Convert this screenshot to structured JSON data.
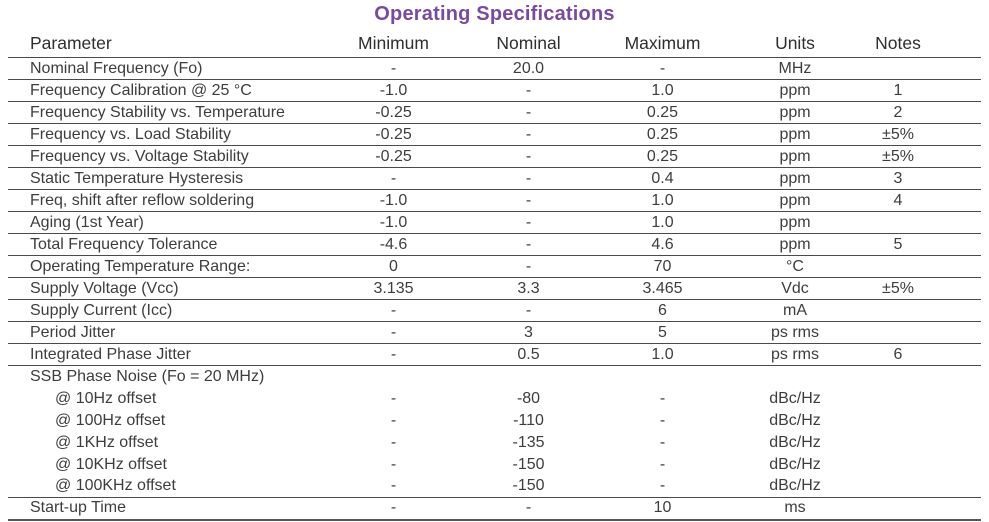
{
  "title": "Operating Specifications",
  "colors": {
    "title_accent": "#7a4a9d",
    "text": "#3d3d3d",
    "rule_line": "#4a4a4a"
  },
  "table": {
    "columns": [
      "Parameter",
      "Minimum",
      "Nominal",
      "Maximum",
      "Units",
      "Notes"
    ],
    "rows": [
      {
        "style": "normal",
        "cells": [
          "Nominal Frequency (Fo)",
          "-",
          "20.0",
          "-",
          "MHz",
          ""
        ]
      },
      {
        "style": "normal",
        "cells": [
          "Frequency Calibration @ 25 °C",
          "-1.0",
          "-",
          "1.0",
          "ppm",
          "1"
        ]
      },
      {
        "style": "normal",
        "cells": [
          "Frequency Stability vs. Temperature",
          "-0.25",
          "-",
          "0.25",
          "ppm",
          "2"
        ]
      },
      {
        "style": "normal",
        "cells": [
          "Frequency vs. Load Stability",
          "-0.25",
          "-",
          "0.25",
          "ppm",
          "±5%"
        ]
      },
      {
        "style": "normal",
        "cells": [
          "Frequency vs. Voltage Stability",
          "-0.25",
          "-",
          "0.25",
          "ppm",
          "±5%"
        ]
      },
      {
        "style": "normal",
        "cells": [
          "Static Temperature Hysteresis",
          "-",
          "-",
          "0.4",
          "ppm",
          "3"
        ]
      },
      {
        "style": "normal",
        "cells": [
          "Freq, shift after reflow soldering",
          "-1.0",
          "-",
          "1.0",
          "ppm",
          "4"
        ]
      },
      {
        "style": "normal",
        "cells": [
          "Aging (1st Year)",
          "-1.0",
          "-",
          "1.0",
          "ppm",
          ""
        ]
      },
      {
        "style": "normal",
        "cells": [
          "Total Frequency Tolerance",
          "-4.6",
          "-",
          "4.6",
          "ppm",
          "5"
        ]
      },
      {
        "style": "normal",
        "cells": [
          "Operating Temperature Range:",
          "0",
          "-",
          "70",
          "°C",
          ""
        ]
      },
      {
        "style": "normal",
        "cells": [
          "Supply Voltage (Vcc)",
          "3.135",
          "3.3",
          "3.465",
          "Vdc",
          "±5%"
        ]
      },
      {
        "style": "normal",
        "cells": [
          "Supply Current (Icc)",
          "-",
          "-",
          "6",
          "mA",
          ""
        ]
      },
      {
        "style": "normal",
        "cells": [
          "Period Jitter",
          "-",
          "3",
          "5",
          "ps rms",
          ""
        ]
      },
      {
        "style": "normal",
        "cells": [
          "Integrated Phase Jitter",
          "-",
          "0.5",
          "1.0",
          "ps rms",
          "6"
        ]
      },
      {
        "style": "group",
        "cells": [
          "SSB Phase Noise (Fo = 20 MHz)",
          "",
          "",
          "",
          "",
          ""
        ]
      },
      {
        "style": "sub",
        "cells": [
          "@ 10Hz offset",
          "-",
          "-80",
          "-",
          "dBc/Hz",
          ""
        ]
      },
      {
        "style": "sub",
        "cells": [
          "@ 100Hz offset",
          "-",
          "-110",
          "-",
          "dBc/Hz",
          ""
        ]
      },
      {
        "style": "sub",
        "cells": [
          "@ 1KHz offset",
          "-",
          "-135",
          "-",
          "dBc/Hz",
          ""
        ]
      },
      {
        "style": "sub",
        "cells": [
          "@ 10KHz offset",
          "-",
          "-150",
          "-",
          "dBc/Hz",
          ""
        ]
      },
      {
        "style": "sub-last",
        "cells": [
          "@ 100KHz offset",
          "-",
          "-150",
          "-",
          "dBc/Hz",
          ""
        ]
      },
      {
        "style": "last",
        "cells": [
          "Start-up Time",
          "-",
          "-",
          "10",
          "ms",
          ""
        ]
      }
    ]
  }
}
